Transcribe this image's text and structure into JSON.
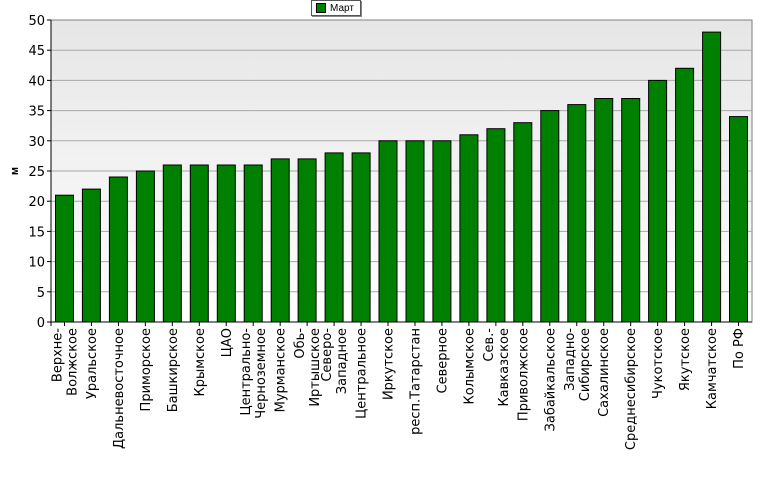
{
  "chart_data": {
    "type": "bar",
    "title": "",
    "xlabel": "",
    "ylabel": "м",
    "ylim": [
      0,
      50
    ],
    "yticks": [
      0,
      5,
      10,
      15,
      20,
      25,
      30,
      35,
      40,
      45,
      50
    ],
    "grid": true,
    "legend_position": "top-center",
    "bar_color": "#008000",
    "categories": [
      [
        "Верхне-",
        "Волжское"
      ],
      [
        "Уральское"
      ],
      [
        "Дальневосточное"
      ],
      [
        "Приморское"
      ],
      [
        "Башкирское"
      ],
      [
        "Крымское"
      ],
      [
        "ЦАО"
      ],
      [
        "Центрально-",
        "Черноземное"
      ],
      [
        "Мурманское"
      ],
      [
        "Обь-",
        "Иртышское"
      ],
      [
        "Северо-",
        "Западное"
      ],
      [
        "Центральное"
      ],
      [
        "Иркутское"
      ],
      [
        "респ.Татарстан"
      ],
      [
        "Северное"
      ],
      [
        "Колымское"
      ],
      [
        "Сев.-",
        "Кавказское"
      ],
      [
        "Приволжское"
      ],
      [
        "Забайкальское"
      ],
      [
        "Западно-",
        "Сибирское"
      ],
      [
        "Сахалинское"
      ],
      [
        "Среднесибирское"
      ],
      [
        "Чукотское"
      ],
      [
        "Якутское"
      ],
      [
        "Камчатское"
      ],
      [
        "По РФ"
      ]
    ],
    "series": [
      {
        "name": "Март",
        "values": [
          21,
          22,
          24,
          25,
          26,
          26,
          26,
          26,
          27,
          27,
          28,
          28,
          30,
          30,
          30,
          31,
          32,
          33,
          35,
          36,
          37,
          37,
          40,
          42,
          48,
          34
        ]
      }
    ]
  }
}
